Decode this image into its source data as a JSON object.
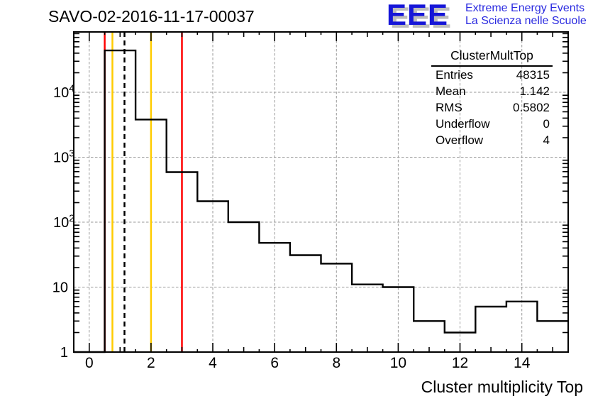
{
  "title": "SAVO-02-2016-11-17-00037",
  "logo": {
    "text": "EEE",
    "tagline_line1": "Extreme Energy Events",
    "tagline_line2": "La Scienza nelle Scuole",
    "color": "#1616d8",
    "shadow_color": "#bdbdbd"
  },
  "stats": {
    "title": "ClusterMultTop",
    "rows": [
      {
        "label": "Entries",
        "value": "48315"
      },
      {
        "label": "Mean",
        "value": "1.142"
      },
      {
        "label": "RMS",
        "value": "0.5802"
      },
      {
        "label": "Underflow",
        "value": "0"
      },
      {
        "label": "Overflow",
        "value": "4"
      }
    ]
  },
  "chart_data": {
    "type": "bar",
    "subtype": "step-histogram",
    "title": "SAVO-02-2016-11-17-00037",
    "xlabel": "Cluster multiplicity Top",
    "ylabel": "",
    "x_range": [
      -0.5,
      15.5
    ],
    "y_scale": "log",
    "y_range": [
      1,
      85000
    ],
    "grid": true,
    "bin_width": 1,
    "categories": [
      0,
      1,
      2,
      3,
      4,
      5,
      6,
      7,
      8,
      9,
      10,
      11,
      12,
      13,
      14,
      15
    ],
    "values": [
      0,
      44000,
      3800,
      590,
      210,
      100,
      48,
      31,
      23,
      11,
      10,
      3,
      2,
      5,
      6,
      3
    ],
    "x_ticks": [
      0,
      2,
      4,
      6,
      8,
      10,
      12,
      14
    ],
    "y_ticks": [
      {
        "v": 1,
        "base": "1",
        "exp": ""
      },
      {
        "v": 10,
        "base": "10",
        "exp": ""
      },
      {
        "v": 100,
        "base": "10",
        "exp": "2"
      },
      {
        "v": 1000,
        "base": "10",
        "exp": "3"
      },
      {
        "v": 10000,
        "base": "10",
        "exp": "4"
      }
    ],
    "line_color": "#000000",
    "grid_color": "#999999",
    "marker_lines": [
      {
        "x": 0.5,
        "color": "#ff0000",
        "style": "solid",
        "name": "red-lower-limit-line"
      },
      {
        "x": 0.75,
        "color": "#ffcc00",
        "style": "solid",
        "name": "yellow-lower-warning-line"
      },
      {
        "x": 1.142,
        "color": "#000000",
        "style": "dashed",
        "name": "mean-dashed-line"
      },
      {
        "x": 2,
        "color": "#ffcc00",
        "style": "solid",
        "name": "yellow-upper-warning-line"
      },
      {
        "x": 3,
        "color": "#ff0000",
        "style": "solid",
        "name": "red-upper-limit-line"
      }
    ]
  }
}
